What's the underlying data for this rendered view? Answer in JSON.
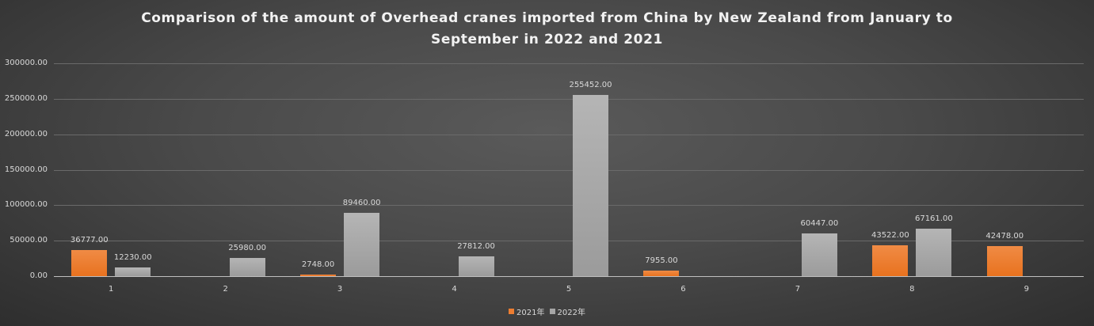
{
  "chart_data": {
    "type": "bar",
    "title": "Comparison of the amount of Overhead cranes imported from China by New Zealand from January to September in 2022 and 2021",
    "title_lines": [
      "Comparison of the amount of Overhead cranes imported from China by New Zealand from January to",
      "September in 2022 and 2021"
    ],
    "categories": [
      "1",
      "2",
      "3",
      "4",
      "5",
      "6",
      "7",
      "8",
      "9"
    ],
    "series": [
      {
        "name": "2021年",
        "color": "#ED7D31",
        "values": [
          36777.0,
          null,
          2748.0,
          null,
          null,
          7955.0,
          null,
          43522.0,
          42478.0
        ]
      },
      {
        "name": "2022年",
        "color": "#A5A5A5",
        "values": [
          12230.0,
          25980.0,
          89460.0,
          27812.0,
          255452.0,
          null,
          60447.0,
          67161.0,
          null
        ]
      }
    ],
    "xlabel": "",
    "ylabel": "",
    "ylim": [
      0,
      300000
    ],
    "yticks": [
      "0.00",
      "50000.00",
      "100000.00",
      "150000.00",
      "200000.00",
      "250000.00",
      "300000.00"
    ],
    "grid": true,
    "legend_position": "bottom"
  }
}
